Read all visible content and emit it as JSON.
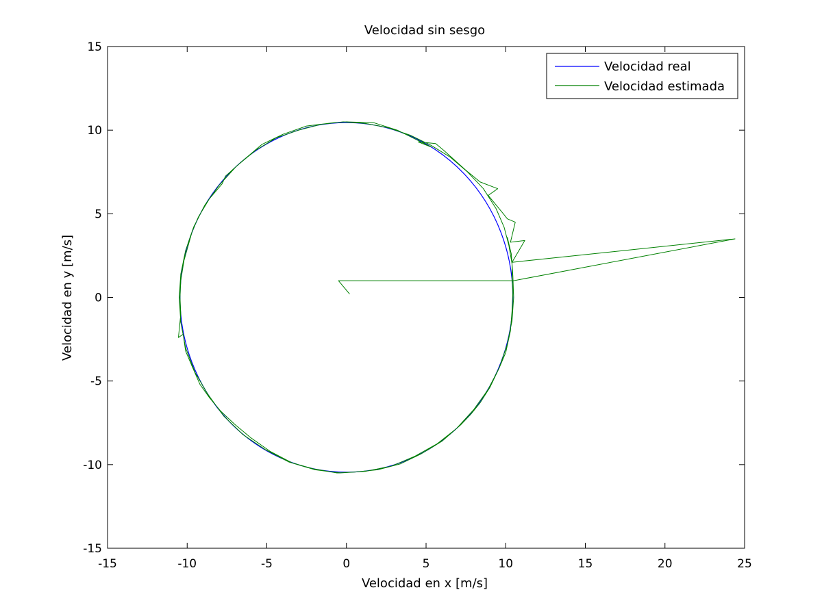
{
  "chart_data": {
    "type": "line",
    "title": "Velocidad sin sesgo",
    "xlabel": "Velocidad en x [m/s]",
    "ylabel": "Velocidad en y [m/s]",
    "xlim": [
      -15,
      25
    ],
    "ylim": [
      -15,
      15
    ],
    "xticks": [
      -15,
      -10,
      -5,
      0,
      5,
      10,
      15,
      20,
      25
    ],
    "yticks": [
      -15,
      -10,
      -5,
      0,
      5,
      10,
      15
    ],
    "xtick_labels": [
      "-15",
      "-10",
      "-5",
      "0",
      "5",
      "10",
      "15",
      "20",
      "25"
    ],
    "ytick_labels": [
      "-15",
      "-10",
      "-5",
      "0",
      "5",
      "10",
      "15"
    ],
    "grid": false,
    "legend_position": "top-right",
    "series": [
      {
        "name": "Velocidad real",
        "color": "#0000ff",
        "shape": "circle",
        "center": [
          0,
          0
        ],
        "radius": 10.45
      },
      {
        "name": "Velocidad estimada",
        "color": "#008000",
        "points": [
          [
            0.2,
            0.2
          ],
          [
            -0.5,
            1.0
          ],
          [
            10.5,
            1.0
          ],
          [
            24.4,
            3.5
          ],
          [
            10.4,
            2.1
          ],
          [
            11.2,
            3.4
          ],
          [
            10.3,
            3.3
          ],
          [
            10.6,
            4.5
          ],
          [
            10.1,
            4.7
          ],
          [
            9.85,
            5.0
          ],
          [
            8.9,
            6.1
          ],
          [
            9.5,
            6.5
          ],
          [
            8.4,
            6.9
          ],
          [
            7.5,
            7.6
          ],
          [
            6.1,
            8.8
          ],
          [
            5.6,
            9.2
          ],
          [
            4.5,
            9.3
          ],
          [
            5.3,
            9.0
          ],
          [
            3.2,
            10.0
          ],
          [
            1.7,
            10.45
          ],
          [
            0.0,
            10.5
          ],
          [
            -0.8,
            10.45
          ],
          [
            -2.5,
            10.25
          ],
          [
            -4.0,
            9.75
          ],
          [
            -5.3,
            9.15
          ],
          [
            -6.6,
            8.1
          ],
          [
            -7.6,
            7.25
          ],
          [
            -7.8,
            6.8
          ],
          [
            -8.6,
            5.9
          ],
          [
            -9.3,
            4.8
          ],
          [
            -9.7,
            3.9
          ],
          [
            -10.2,
            2.2
          ],
          [
            -10.4,
            1.0
          ],
          [
            -10.45,
            0.0
          ],
          [
            -10.4,
            -1.0
          ],
          [
            -10.55,
            -2.4
          ],
          [
            -10.25,
            -2.2
          ],
          [
            -10.1,
            -3.2
          ],
          [
            -9.7,
            -4.1
          ],
          [
            -9.2,
            -5.2
          ],
          [
            -8.6,
            -6.0
          ],
          [
            -7.9,
            -6.8
          ],
          [
            -7.0,
            -7.6
          ],
          [
            -6.0,
            -8.4
          ],
          [
            -4.8,
            -9.2
          ],
          [
            -3.4,
            -9.9
          ],
          [
            -2.1,
            -10.25
          ],
          [
            -0.6,
            -10.5
          ],
          [
            0.5,
            -10.45
          ],
          [
            2.0,
            -10.3
          ],
          [
            3.4,
            -9.95
          ],
          [
            4.7,
            -9.35
          ],
          [
            6.0,
            -8.6
          ],
          [
            7.2,
            -7.6
          ],
          [
            7.8,
            -7.0
          ],
          [
            8.4,
            -6.3
          ],
          [
            9.0,
            -5.4
          ],
          [
            9.6,
            -4.2
          ],
          [
            10.0,
            -3.3
          ],
          [
            10.3,
            -2.0
          ],
          [
            10.4,
            -0.8
          ],
          [
            10.45,
            0.3
          ],
          [
            10.4,
            1.2
          ],
          [
            10.4,
            2.0
          ],
          [
            10.2,
            3.1
          ],
          [
            9.9,
            4.2
          ],
          [
            9.4,
            5.3
          ],
          [
            8.6,
            6.5
          ],
          [
            7.6,
            7.5
          ],
          [
            6.5,
            8.4
          ],
          [
            5.3,
            9.1
          ],
          [
            4.0,
            9.7
          ],
          [
            2.6,
            10.15
          ],
          [
            1.2,
            10.4
          ],
          [
            -0.2,
            10.5
          ],
          [
            -1.6,
            10.35
          ],
          [
            -3.0,
            10.0
          ],
          [
            -4.4,
            9.55
          ],
          [
            -5.7,
            8.8
          ],
          [
            -6.9,
            7.85
          ],
          [
            -8.0,
            6.7
          ],
          [
            -8.9,
            5.5
          ],
          [
            -9.6,
            4.2
          ],
          [
            -10.1,
            2.8
          ],
          [
            -10.4,
            1.4
          ],
          [
            -10.5,
            0.0
          ],
          [
            -10.4,
            -1.5
          ],
          [
            -10.1,
            -3.0
          ],
          [
            -9.5,
            -4.5
          ],
          [
            -8.7,
            -5.8
          ],
          [
            -7.7,
            -7.1
          ],
          [
            -6.5,
            -8.2
          ],
          [
            -5.1,
            -9.1
          ],
          [
            -3.6,
            -9.85
          ],
          [
            -2.0,
            -10.3
          ],
          [
            -0.4,
            -10.5
          ],
          [
            1.2,
            -10.4
          ],
          [
            2.8,
            -10.1
          ],
          [
            4.3,
            -9.5
          ],
          [
            5.7,
            -8.75
          ],
          [
            6.9,
            -7.85
          ],
          [
            8.0,
            -6.7
          ],
          [
            8.9,
            -5.5
          ],
          [
            9.6,
            -4.2
          ],
          [
            10.1,
            -2.8
          ],
          [
            10.4,
            -1.4
          ],
          [
            10.5,
            0.0
          ],
          [
            10.45,
            1.3
          ],
          [
            10.35,
            2.6
          ],
          [
            10.1,
            3.6
          ]
        ]
      }
    ]
  }
}
